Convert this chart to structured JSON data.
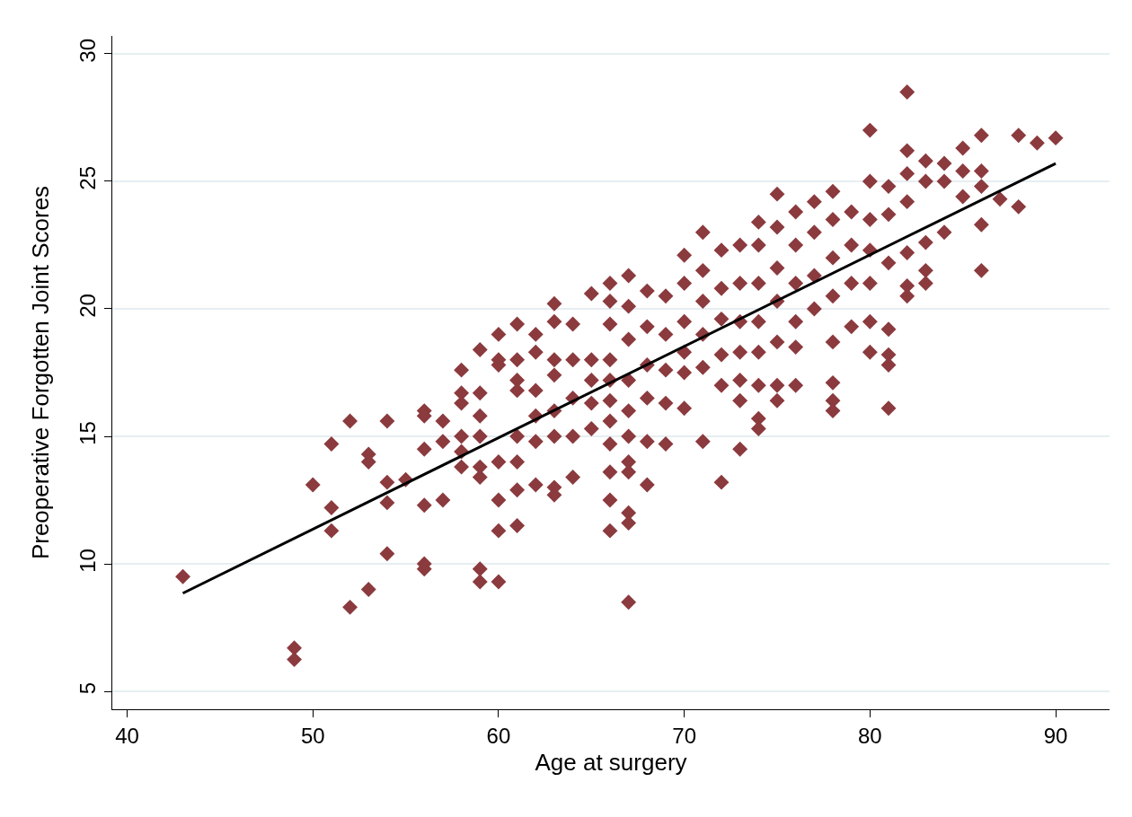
{
  "chart_data": {
    "type": "scatter",
    "xlabel": "Age at surgery",
    "ylabel": "Preoperative Forgotten Joint Scores",
    "xlim": [
      39.2,
      92.9
    ],
    "ylim": [
      4.3,
      30.7
    ],
    "xticks": [
      40,
      50,
      60,
      70,
      80,
      90
    ],
    "yticks": [
      5,
      10,
      15,
      20,
      25,
      30
    ],
    "grid": "y",
    "marker": "diamond",
    "series": [
      {
        "color": "#8b3a3e",
        "x": [
          43,
          49,
          49,
          50,
          51,
          51,
          51,
          52,
          52,
          53,
          53,
          53,
          54,
          54,
          54,
          54,
          55,
          56,
          56,
          56,
          56,
          56,
          56,
          57,
          57,
          57,
          58,
          58,
          58,
          58,
          58,
          58,
          59,
          59,
          59,
          59,
          59,
          59,
          59,
          59,
          60,
          60,
          60,
          60,
          60,
          60,
          60,
          61,
          61,
          61,
          61,
          61,
          61,
          61,
          61,
          62,
          62,
          62,
          62,
          62,
          62,
          63,
          63,
          63,
          63,
          63,
          63,
          63,
          63,
          64,
          64,
          64,
          64,
          64,
          65,
          65,
          65,
          65,
          65,
          66,
          66,
          66,
          66,
          66,
          66,
          66,
          66,
          66,
          66,
          66,
          67,
          67,
          67,
          67,
          67,
          67,
          67,
          67,
          67,
          67,
          67,
          68,
          68,
          68,
          68,
          68,
          68,
          69,
          69,
          69,
          69,
          69,
          70,
          70,
          70,
          70,
          70,
          70,
          71,
          71,
          71,
          71,
          71,
          71,
          72,
          72,
          72,
          72,
          72,
          72,
          73,
          73,
          73,
          73,
          73,
          73,
          73,
          74,
          74,
          74,
          74,
          74,
          74,
          74,
          74,
          75,
          75,
          75,
          75,
          75,
          75,
          75,
          76,
          76,
          76,
          76,
          76,
          76,
          77,
          77,
          77,
          77,
          78,
          78,
          78,
          78,
          78,
          78,
          78,
          78,
          79,
          79,
          79,
          79,
          80,
          80,
          80,
          80,
          80,
          80,
          80,
          81,
          81,
          81,
          81,
          81,
          81,
          81,
          82,
          82,
          82,
          82,
          82,
          82,
          82,
          83,
          83,
          83,
          83,
          83,
          84,
          84,
          84,
          85,
          85,
          85,
          86,
          86,
          86,
          86,
          86,
          87,
          88,
          88,
          89,
          90
        ],
        "values": [
          9.5,
          6.7,
          6.25,
          13.1,
          14.7,
          12.2,
          11.3,
          15.6,
          8.3,
          14.3,
          14.0,
          9.0,
          15.6,
          13.2,
          12.4,
          10.4,
          13.3,
          16.0,
          15.8,
          14.5,
          12.3,
          10.0,
          9.8,
          15.6,
          14.8,
          12.5,
          17.6,
          16.7,
          16.3,
          15.0,
          14.4,
          13.8,
          18.4,
          16.7,
          15.8,
          15.0,
          13.8,
          13.4,
          9.8,
          9.3,
          19.0,
          18.0,
          17.8,
          14.0,
          12.5,
          11.3,
          9.3,
          19.4,
          18.0,
          17.2,
          16.8,
          15.0,
          14.0,
          12.9,
          11.5,
          19.0,
          18.3,
          16.8,
          15.8,
          14.8,
          13.1,
          20.2,
          19.5,
          18.0,
          17.4,
          16.0,
          15.0,
          13.0,
          12.7,
          19.4,
          18.0,
          16.5,
          15.0,
          13.4,
          20.6,
          18.0,
          17.2,
          16.3,
          15.3,
          21.0,
          20.3,
          19.4,
          18.0,
          17.2,
          16.4,
          15.6,
          14.7,
          13.6,
          12.5,
          11.3,
          21.3,
          20.1,
          18.8,
          17.2,
          16.0,
          15.0,
          14.0,
          13.6,
          12.0,
          11.6,
          8.5,
          20.7,
          19.3,
          17.8,
          16.5,
          14.8,
          13.1,
          20.5,
          19.0,
          17.6,
          16.3,
          14.7,
          22.1,
          21.0,
          19.5,
          18.3,
          17.5,
          16.1,
          23.0,
          21.5,
          20.3,
          19.0,
          17.7,
          14.8,
          22.3,
          20.8,
          19.6,
          18.2,
          17.0,
          13.2,
          22.5,
          21.0,
          19.5,
          18.3,
          17.2,
          16.4,
          14.5,
          23.4,
          22.5,
          21.0,
          19.5,
          18.3,
          17.0,
          15.7,
          15.3,
          24.5,
          23.2,
          21.6,
          20.3,
          18.7,
          17.0,
          16.4,
          23.8,
          22.5,
          21.0,
          19.5,
          18.5,
          17.0,
          24.2,
          23.0,
          21.3,
          20.0,
          24.6,
          23.5,
          22.0,
          20.5,
          18.7,
          17.1,
          16.4,
          16.0,
          23.8,
          22.5,
          21.0,
          19.3,
          27.0,
          25.0,
          23.5,
          22.3,
          21.0,
          19.5,
          18.3,
          24.8,
          23.7,
          21.8,
          19.2,
          18.2,
          17.8,
          16.1,
          28.5,
          26.2,
          25.3,
          24.2,
          22.2,
          20.9,
          20.5,
          25.8,
          25.0,
          22.6,
          21.5,
          21.0,
          25.7,
          25.0,
          23.0,
          26.3,
          25.4,
          24.4,
          26.8,
          25.4,
          24.8,
          23.3,
          21.5,
          24.3,
          26.8,
          24.0,
          26.5,
          26.7
        ]
      },
      {
        "type": "line",
        "color": "#000000",
        "marker": "none",
        "line_style": "solid",
        "x": [
          43,
          90
        ],
        "values": [
          8.85,
          25.7
        ]
      }
    ]
  }
}
